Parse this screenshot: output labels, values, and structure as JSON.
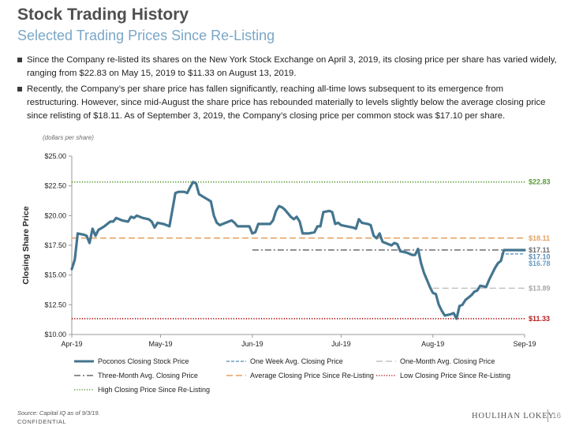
{
  "header": {
    "title": "Stock Trading History",
    "subtitle": "Selected Trading Prices Since Re-Listing"
  },
  "bullets": [
    "Since the Company re-listed its shares on the New York Stock Exchange on April 3, 2019, its closing price per share has varied widely, ranging from $22.83 on May 15, 2019 to $11.33 on August 13, 2019.",
    "Recently, the Company’s per share price has fallen significantly, reaching all-time lows subsequent to its emergence from restructuring. However, since mid-August the share price has rebounded materially to levels slightly below the average closing price since relisting of $18.11. As of September 3, 2019, the Company’s closing price per common stock was $17.10 per share."
  ],
  "units_note": "(dollars per share)",
  "chart_data": {
    "type": "line",
    "ylabel": "Closing Share Price",
    "ylim": [
      10,
      25
    ],
    "yticks": [
      {
        "value": 10,
        "label": "$10.00"
      },
      {
        "value": 12.5,
        "label": "$12.50"
      },
      {
        "value": 15,
        "label": "$15.00"
      },
      {
        "value": 17.5,
        "label": "$17.50"
      },
      {
        "value": 20,
        "label": "$20.00"
      },
      {
        "value": 22.5,
        "label": "$22.50"
      },
      {
        "value": 25,
        "label": "$25.00"
      }
    ],
    "xlim": [
      0,
      153
    ],
    "xticks": [
      {
        "value": 0,
        "label": "Apr-19"
      },
      {
        "value": 30,
        "label": "May-19"
      },
      {
        "value": 61,
        "label": "Jun-19"
      },
      {
        "value": 91,
        "label": "Jul-19"
      },
      {
        "value": 122,
        "label": "Aug-19"
      },
      {
        "value": 153,
        "label": "Sep-19"
      }
    ],
    "series": [
      {
        "name": "Poconos Closing Stock Price",
        "color": "#44758f",
        "style": "solid",
        "points": [
          [
            0,
            15.5
          ],
          [
            1,
            16.3
          ],
          [
            2,
            18.5
          ],
          [
            4,
            18.4
          ],
          [
            5,
            18.3
          ],
          [
            6,
            17.7
          ],
          [
            7,
            18.9
          ],
          [
            8,
            18.3
          ],
          [
            9,
            18.8
          ],
          [
            11,
            19.1
          ],
          [
            13,
            19.5
          ],
          [
            14,
            19.5
          ],
          [
            15,
            19.8
          ],
          [
            17,
            19.6
          ],
          [
            19,
            19.5
          ],
          [
            20,
            19.9
          ],
          [
            21,
            19.8
          ],
          [
            22,
            20.0
          ],
          [
            24,
            19.8
          ],
          [
            26,
            19.7
          ],
          [
            27,
            19.5
          ],
          [
            28,
            19.0
          ],
          [
            29,
            19.4
          ],
          [
            31,
            19.3
          ],
          [
            33,
            19.1
          ],
          [
            35,
            21.9
          ],
          [
            36,
            22.0
          ],
          [
            38,
            22.0
          ],
          [
            39,
            21.9
          ],
          [
            40,
            22.4
          ],
          [
            41,
            22.83
          ],
          [
            42,
            22.7
          ],
          [
            43,
            21.8
          ],
          [
            45,
            21.5
          ],
          [
            47,
            21.2
          ],
          [
            48,
            20.0
          ],
          [
            49,
            19.4
          ],
          [
            50,
            19.2
          ],
          [
            52,
            19.4
          ],
          [
            54,
            19.6
          ],
          [
            55,
            19.4
          ],
          [
            56,
            19.1
          ],
          [
            58,
            19.1
          ],
          [
            60,
            19.1
          ],
          [
            61,
            18.5
          ],
          [
            62,
            18.6
          ],
          [
            63,
            19.3
          ],
          [
            65,
            19.3
          ],
          [
            67,
            19.3
          ],
          [
            68,
            19.6
          ],
          [
            69,
            20.4
          ],
          [
            70,
            20.8
          ],
          [
            71,
            20.7
          ],
          [
            72,
            20.5
          ],
          [
            74,
            19.9
          ],
          [
            75,
            19.7
          ],
          [
            76,
            19.9
          ],
          [
            77,
            19.5
          ],
          [
            78,
            18.5
          ],
          [
            80,
            18.5
          ],
          [
            82,
            18.6
          ],
          [
            83,
            19.1
          ],
          [
            84,
            19.1
          ],
          [
            85,
            20.3
          ],
          [
            87,
            20.4
          ],
          [
            88,
            20.3
          ],
          [
            89,
            19.3
          ],
          [
            90,
            19.4
          ],
          [
            91,
            19.2
          ],
          [
            93,
            19.1
          ],
          [
            95,
            19.0
          ],
          [
            96,
            18.9
          ],
          [
            97,
            19.7
          ],
          [
            98,
            19.4
          ],
          [
            100,
            19.3
          ],
          [
            101,
            19.2
          ],
          [
            102,
            18.3
          ],
          [
            103,
            18.1
          ],
          [
            104,
            18.5
          ],
          [
            105,
            17.8
          ],
          [
            107,
            17.6
          ],
          [
            108,
            17.5
          ],
          [
            109,
            17.7
          ],
          [
            110,
            17.6
          ],
          [
            111,
            17.0
          ],
          [
            113,
            16.9
          ],
          [
            114,
            16.8
          ],
          [
            115,
            16.7
          ],
          [
            116,
            16.7
          ],
          [
            117,
            17.2
          ],
          [
            118,
            16.0
          ],
          [
            119,
            15.2
          ],
          [
            120,
            14.6
          ],
          [
            121,
            14.0
          ],
          [
            122,
            13.5
          ],
          [
            123,
            13.4
          ],
          [
            124,
            12.5
          ],
          [
            125,
            12.0
          ],
          [
            126,
            11.6
          ],
          [
            128,
            11.7
          ],
          [
            129,
            11.8
          ],
          [
            130,
            11.33
          ],
          [
            131,
            12.4
          ],
          [
            132,
            12.5
          ],
          [
            133,
            12.9
          ],
          [
            135,
            13.3
          ],
          [
            136,
            13.6
          ],
          [
            137,
            13.7
          ],
          [
            138,
            14.1
          ],
          [
            140,
            14.0
          ],
          [
            141,
            14.6
          ],
          [
            142,
            15.1
          ],
          [
            143,
            15.6
          ],
          [
            144,
            16.0
          ],
          [
            145,
            16.2
          ],
          [
            146,
            17.1
          ],
          [
            148,
            17.1
          ],
          [
            150,
            17.1
          ],
          [
            153,
            17.1
          ]
        ]
      },
      {
        "name": "One Week Avg. Closing Price",
        "color": "#6a9fc4",
        "style": "dashed",
        "value": 16.78,
        "x_start": 145,
        "x_end": 153,
        "label": "$16.78"
      },
      {
        "name": "One-Month Avg. Closing Price",
        "color": "#c2c2c2",
        "style": "longdash",
        "value": 13.89,
        "x_start": 122,
        "x_end": 153,
        "label": "$13.89"
      },
      {
        "name": "Three-Month Avg. Closing Price",
        "color": "#6b6b6b",
        "style": "dashdot",
        "value": 17.11,
        "x_start": 61,
        "x_end": 153,
        "label": "$17.11"
      },
      {
        "name": "Average Closing Price Since Re-Listing",
        "color": "#e5a15e",
        "style": "longdash",
        "value": 18.11,
        "x_start": 0,
        "x_end": 153,
        "label": "$18.11"
      },
      {
        "name": "Low Closing Price Since Re-Listing",
        "color": "#b51e1e",
        "style": "dotted",
        "value": 11.33,
        "x_start": 0,
        "x_end": 153,
        "label": "$11.33"
      },
      {
        "name": "High Closing Price Since Re-Listing",
        "color": "#5a9a36",
        "style": "dotted",
        "value": 22.83,
        "x_start": 0,
        "x_end": 153,
        "label": "$22.83"
      }
    ],
    "end_labels": [
      {
        "text": "$17.10",
        "color": "#5d8db3",
        "value": 17.1
      }
    ],
    "legend": [
      "Poconos Closing Stock Price",
      "One Week Avg. Closing Price",
      "One-Month Avg. Closing Price",
      "Three-Month Avg. Closing Price",
      "Average Closing Price Since Re-Listing",
      "Low Closing Price Since Re-Listing",
      "High Closing Price Since Re-Listing"
    ],
    "legend_position": "bottom"
  },
  "footer": {
    "source": "Source: Capital IQ as of 9/3/19.",
    "confidential": "CONFIDENTIAL",
    "brand": "HOULIHAN LOKEY",
    "page_number": "16"
  }
}
